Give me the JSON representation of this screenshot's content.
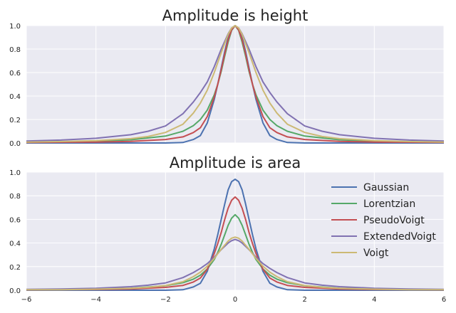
{
  "colors": {
    "Gaussian": "#4c72b0",
    "Lorentzian": "#55a868",
    "PseudoVoigt": "#c44e52",
    "ExtendedVoigt": "#8172b2",
    "Voigt": "#ccb974",
    "panel_background": "#eaeaf2",
    "grid": "#ffffff"
  },
  "chart_data": [
    {
      "type": "line",
      "title": "Amplitude is height",
      "xlim": [
        -6,
        6
      ],
      "ylim": [
        0,
        1.0
      ],
      "xticks": [],
      "yticks": [
        0.0,
        0.2,
        0.4,
        0.6,
        0.8,
        1.0
      ],
      "ytick_labels": [
        "0.0",
        "0.2",
        "0.4",
        "0.6",
        "0.8",
        "1.0"
      ],
      "grid": true,
      "legend": null,
      "series": [
        {
          "name": "Gaussian",
          "x": [
            -6,
            -2,
            -1.5,
            -1.2,
            -1,
            -0.8,
            -0.6,
            -0.5,
            -0.4,
            -0.3,
            -0.2,
            -0.1,
            0,
            0.1,
            0.2,
            0.3,
            0.4,
            0.5,
            0.6,
            0.8,
            1,
            1.2,
            1.5,
            2,
            6
          ],
          "y": [
            0.0,
            0.0,
            0.004,
            0.03,
            0.063,
            0.17,
            0.37,
            0.5,
            0.64,
            0.78,
            0.9,
            0.97,
            1.0,
            0.97,
            0.9,
            0.78,
            0.64,
            0.5,
            0.37,
            0.17,
            0.063,
            0.03,
            0.004,
            0.0,
            0.0
          ]
        },
        {
          "name": "Lorentzian",
          "x": [
            -6,
            -4,
            -3,
            -2,
            -1.5,
            -1.2,
            -1,
            -0.8,
            -0.6,
            -0.5,
            -0.4,
            -0.3,
            -0.2,
            -0.1,
            0,
            0.1,
            0.2,
            0.3,
            0.4,
            0.5,
            0.6,
            0.8,
            1,
            1.2,
            1.5,
            2,
            3,
            4,
            6
          ],
          "y": [
            0.007,
            0.015,
            0.027,
            0.059,
            0.1,
            0.148,
            0.2,
            0.28,
            0.41,
            0.5,
            0.61,
            0.74,
            0.86,
            0.96,
            1.0,
            0.96,
            0.86,
            0.74,
            0.61,
            0.5,
            0.41,
            0.28,
            0.2,
            0.148,
            0.1,
            0.059,
            0.027,
            0.015,
            0.007
          ]
        },
        {
          "name": "PseudoVoigt",
          "x": [
            -6,
            -4,
            -3,
            -2,
            -1.5,
            -1.2,
            -1,
            -0.8,
            -0.6,
            -0.5,
            -0.4,
            -0.3,
            -0.2,
            -0.1,
            0,
            0.1,
            0.2,
            0.3,
            0.4,
            0.5,
            0.6,
            0.8,
            1,
            1.2,
            1.5,
            2,
            3,
            4,
            6
          ],
          "y": [
            0.004,
            0.008,
            0.014,
            0.03,
            0.052,
            0.089,
            0.13,
            0.225,
            0.39,
            0.5,
            0.625,
            0.76,
            0.88,
            0.965,
            1.0,
            0.965,
            0.88,
            0.76,
            0.625,
            0.5,
            0.39,
            0.225,
            0.13,
            0.089,
            0.052,
            0.03,
            0.014,
            0.008,
            0.004
          ]
        },
        {
          "name": "ExtendedVoigt",
          "x": [
            -6,
            -5,
            -4,
            -3,
            -2.5,
            -2,
            -1.5,
            -1.2,
            -1,
            -0.8,
            -0.6,
            -0.4,
            -0.2,
            -0.1,
            0,
            0.1,
            0.2,
            0.4,
            0.6,
            0.8,
            1,
            1.2,
            1.5,
            2,
            2.5,
            3,
            4,
            5,
            6
          ],
          "y": [
            0.017,
            0.025,
            0.04,
            0.07,
            0.1,
            0.145,
            0.25,
            0.35,
            0.43,
            0.52,
            0.65,
            0.8,
            0.93,
            0.98,
            1.0,
            0.98,
            0.93,
            0.8,
            0.65,
            0.52,
            0.43,
            0.35,
            0.25,
            0.145,
            0.1,
            0.07,
            0.04,
            0.025,
            0.017
          ]
        },
        {
          "name": "Voigt",
          "x": [
            -6,
            -5,
            -4,
            -3,
            -2.5,
            -2,
            -1.5,
            -1.2,
            -1,
            -0.8,
            -0.6,
            -0.4,
            -0.2,
            -0.1,
            0,
            0.1,
            0.2,
            0.4,
            0.6,
            0.8,
            1,
            1.2,
            1.5,
            2,
            2.5,
            3,
            4,
            5,
            6
          ],
          "y": [
            0.008,
            0.012,
            0.02,
            0.037,
            0.055,
            0.09,
            0.16,
            0.255,
            0.34,
            0.45,
            0.6,
            0.77,
            0.925,
            0.98,
            1.0,
            0.98,
            0.925,
            0.77,
            0.6,
            0.45,
            0.34,
            0.255,
            0.16,
            0.09,
            0.055,
            0.037,
            0.02,
            0.012,
            0.008
          ]
        }
      ]
    },
    {
      "type": "line",
      "title": "Amplitude is area",
      "xlim": [
        -6,
        6
      ],
      "ylim": [
        0,
        1.0
      ],
      "xticks": [
        -6,
        -4,
        -2,
        0,
        2,
        4,
        6
      ],
      "xtick_labels": [
        "−6",
        "−4",
        "−2",
        "0",
        "2",
        "4",
        "6"
      ],
      "yticks": [
        0.0,
        0.2,
        0.4,
        0.6,
        0.8,
        1.0
      ],
      "ytick_labels": [
        "0.0",
        "0.2",
        "0.4",
        "0.6",
        "0.8",
        "1.0"
      ],
      "grid": true,
      "legend": {
        "placement": "top-right",
        "entries": [
          "Gaussian",
          "Lorentzian",
          "PseudoVoigt",
          "ExtendedVoigt",
          "Voigt"
        ]
      },
      "series": [
        {
          "name": "Gaussian",
          "x": [
            -6,
            -2,
            -1.5,
            -1.2,
            -1,
            -0.8,
            -0.6,
            -0.5,
            -0.4,
            -0.3,
            -0.2,
            -0.1,
            0,
            0.1,
            0.2,
            0.3,
            0.4,
            0.5,
            0.6,
            0.8,
            1,
            1.2,
            1.5,
            2,
            6
          ],
          "y": [
            0.0,
            0.0,
            0.004,
            0.028,
            0.059,
            0.16,
            0.35,
            0.47,
            0.6,
            0.73,
            0.85,
            0.92,
            0.94,
            0.92,
            0.85,
            0.73,
            0.6,
            0.47,
            0.35,
            0.16,
            0.059,
            0.028,
            0.004,
            0.0,
            0.0
          ]
        },
        {
          "name": "Lorentzian",
          "x": [
            -6,
            -4,
            -3,
            -2,
            -1.5,
            -1.2,
            -1,
            -0.8,
            -0.6,
            -0.5,
            -0.4,
            -0.3,
            -0.2,
            -0.1,
            0,
            0.1,
            0.2,
            0.3,
            0.4,
            0.5,
            0.6,
            0.8,
            1,
            1.2,
            1.5,
            2,
            3,
            4,
            6
          ],
          "y": [
            0.004,
            0.01,
            0.017,
            0.038,
            0.064,
            0.094,
            0.127,
            0.18,
            0.26,
            0.32,
            0.39,
            0.47,
            0.55,
            0.61,
            0.64,
            0.61,
            0.55,
            0.47,
            0.39,
            0.32,
            0.26,
            0.18,
            0.127,
            0.094,
            0.064,
            0.038,
            0.017,
            0.01,
            0.004
          ]
        },
        {
          "name": "PseudoVoigt",
          "x": [
            -6,
            -4,
            -3,
            -2,
            -1.5,
            -1.2,
            -1,
            -0.8,
            -0.6,
            -0.5,
            -0.4,
            -0.3,
            -0.2,
            -0.1,
            0,
            0.1,
            0.2,
            0.3,
            0.4,
            0.5,
            0.6,
            0.8,
            1,
            1.2,
            1.5,
            2,
            3,
            4,
            6
          ],
          "y": [
            0.003,
            0.006,
            0.011,
            0.024,
            0.041,
            0.07,
            0.103,
            0.178,
            0.31,
            0.395,
            0.49,
            0.6,
            0.695,
            0.762,
            0.79,
            0.762,
            0.695,
            0.6,
            0.49,
            0.395,
            0.31,
            0.178,
            0.103,
            0.07,
            0.041,
            0.024,
            0.011,
            0.006,
            0.003
          ]
        },
        {
          "name": "ExtendedVoigt",
          "x": [
            -6,
            -5,
            -4,
            -3,
            -2.5,
            -2,
            -1.5,
            -1.2,
            -1,
            -0.8,
            -0.6,
            -0.4,
            -0.2,
            -0.1,
            0,
            0.1,
            0.2,
            0.4,
            0.6,
            0.8,
            1,
            1.2,
            1.5,
            2,
            2.5,
            3,
            4,
            5,
            6
          ],
          "y": [
            0.007,
            0.011,
            0.017,
            0.03,
            0.043,
            0.062,
            0.107,
            0.15,
            0.185,
            0.225,
            0.28,
            0.344,
            0.4,
            0.42,
            0.43,
            0.42,
            0.4,
            0.344,
            0.28,
            0.225,
            0.185,
            0.15,
            0.107,
            0.062,
            0.043,
            0.03,
            0.017,
            0.011,
            0.007
          ]
        },
        {
          "name": "Voigt",
          "x": [
            -6,
            -5,
            -4,
            -3,
            -2.5,
            -2,
            -1.5,
            -1.2,
            -1,
            -0.8,
            -0.6,
            -0.4,
            -0.2,
            -0.1,
            0,
            0.1,
            0.2,
            0.4,
            0.6,
            0.8,
            1,
            1.2,
            1.5,
            2,
            2.5,
            3,
            4,
            5,
            6
          ],
          "y": [
            0.004,
            0.005,
            0.009,
            0.017,
            0.025,
            0.04,
            0.072,
            0.115,
            0.153,
            0.203,
            0.27,
            0.347,
            0.416,
            0.441,
            0.45,
            0.441,
            0.416,
            0.347,
            0.27,
            0.203,
            0.153,
            0.115,
            0.072,
            0.04,
            0.025,
            0.017,
            0.009,
            0.005,
            0.004
          ]
        }
      ]
    }
  ]
}
